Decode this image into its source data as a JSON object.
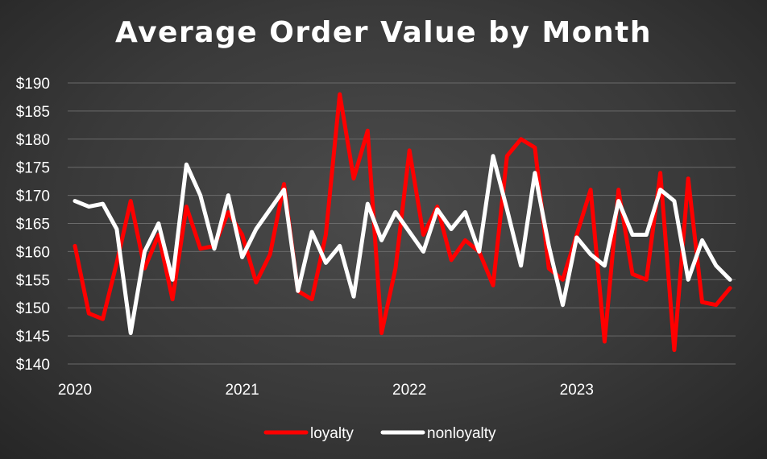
{
  "chart_data": {
    "type": "line",
    "title": "Average Order Value by Month",
    "xlabel": "",
    "ylabel": "",
    "ylim": [
      140,
      190
    ],
    "yticks": [
      "$140",
      "$145",
      "$150",
      "$155",
      "$160",
      "$165",
      "$170",
      "$175",
      "$180",
      "$185",
      "$190"
    ],
    "xticks": [
      "2020",
      "2021",
      "2022",
      "2023"
    ],
    "x_start": "2020-01",
    "grid": true,
    "legend": "bottom",
    "x": [
      "2020-01",
      "2020-02",
      "2020-03",
      "2020-04",
      "2020-05",
      "2020-06",
      "2020-07",
      "2020-08",
      "2020-09",
      "2020-10",
      "2020-11",
      "2020-12",
      "2021-01",
      "2021-02",
      "2021-03",
      "2021-04",
      "2021-05",
      "2021-06",
      "2021-07",
      "2021-08",
      "2021-09",
      "2021-10",
      "2021-11",
      "2021-12",
      "2022-01",
      "2022-02",
      "2022-03",
      "2022-04",
      "2022-05",
      "2022-06",
      "2022-07",
      "2022-08",
      "2022-09",
      "2022-10",
      "2022-11",
      "2022-12",
      "2023-01",
      "2023-02",
      "2023-03",
      "2023-04",
      "2023-05",
      "2023-06",
      "2023-07",
      "2023-08",
      "2023-09",
      "2023-10",
      "2023-11",
      "2023-12"
    ],
    "series": [
      {
        "name": "loyalty",
        "color": "#ff0000",
        "values": [
          161,
          149,
          148,
          158,
          169,
          157,
          163,
          151.5,
          168,
          160.5,
          161,
          167,
          163,
          154.5,
          159.5,
          172,
          153,
          151.5,
          163,
          188,
          173,
          181.5,
          145.5,
          157,
          178,
          163,
          168,
          158.5,
          162,
          160,
          154,
          177,
          180,
          178.5,
          157,
          155,
          163,
          171,
          144,
          171,
          156,
          155,
          174,
          142.5,
          173,
          151,
          150.5,
          153.5
        ]
      },
      {
        "name": "nonloyalty",
        "color": "#ffffff",
        "values": [
          169,
          168,
          168.5,
          164,
          145.5,
          160,
          165,
          155,
          175.5,
          170,
          160.5,
          170,
          159,
          164,
          167.5,
          171,
          153,
          163.5,
          158,
          161,
          152,
          168.5,
          162,
          167,
          163.5,
          160,
          167.5,
          164,
          167,
          160,
          177,
          167.5,
          157.5,
          174,
          161,
          150.5,
          162.5,
          159.5,
          157.5,
          169,
          163,
          163,
          171,
          169,
          155,
          162,
          157.5,
          155
        ]
      }
    ]
  }
}
